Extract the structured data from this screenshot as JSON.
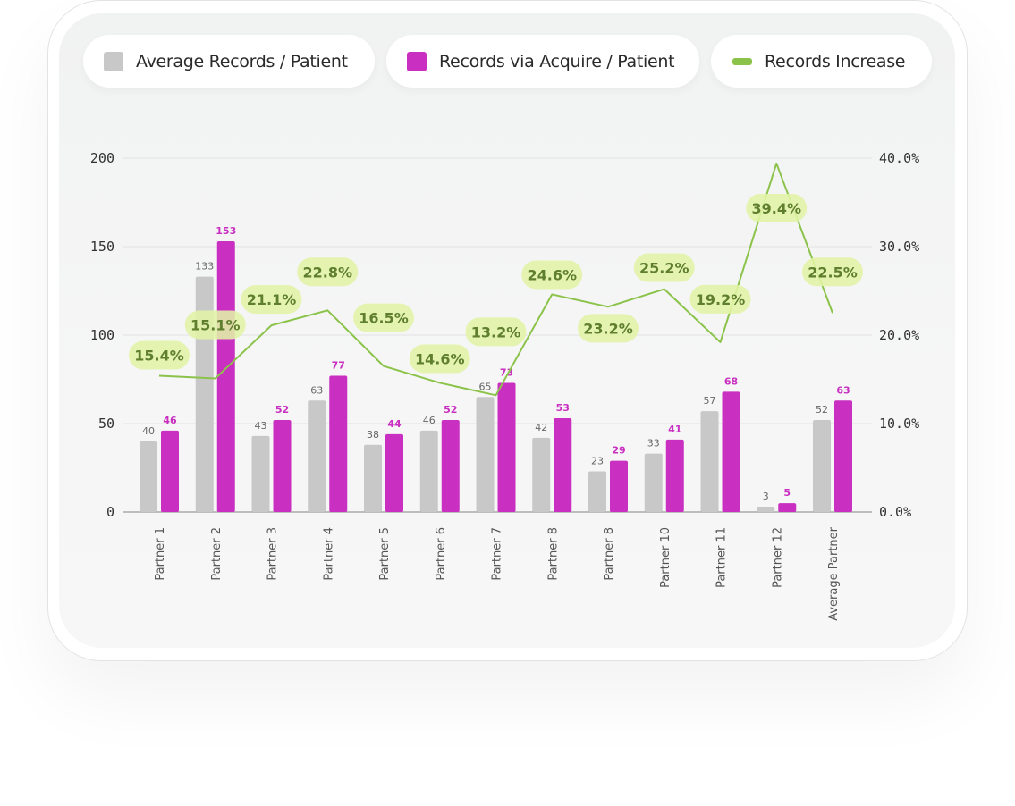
{
  "legend": [
    {
      "label": "Average Records / Patient",
      "color": "#c8c8c8"
    },
    {
      "label": "Records via Acquire / Patient",
      "color": "#c92fc0"
    },
    {
      "label": "Records Increase",
      "color": "#8bc34a"
    }
  ],
  "chart_data": {
    "type": "bar",
    "categories": [
      "Partner 1",
      "Partner 2",
      "Partner 3",
      "Partner 4",
      "Partner 5",
      "Partner 6",
      "Partner 7",
      "Partner 8",
      "Partner 8",
      "Partner 10",
      "Partner 11",
      "Partner 12",
      "Average Partner"
    ],
    "series": [
      {
        "name": "Average Records / Patient",
        "type": "bar",
        "axis": "left",
        "color": "#c8c8c8",
        "label_color": "#666666",
        "values": [
          40,
          133,
          43,
          63,
          38,
          46,
          65,
          42,
          23,
          33,
          57,
          3,
          52
        ]
      },
      {
        "name": "Records via Acquire / Patient",
        "type": "bar",
        "axis": "left",
        "color": "#c92fc0",
        "label_color": "#c92fc0",
        "values": [
          46,
          153,
          52,
          77,
          44,
          52,
          73,
          53,
          29,
          41,
          68,
          5,
          63
        ]
      },
      {
        "name": "Records Increase",
        "type": "line",
        "axis": "right",
        "color": "#8bc34a",
        "values": [
          15.4,
          15.1,
          21.1,
          22.8,
          16.5,
          14.6,
          13.2,
          24.6,
          23.2,
          25.2,
          19.2,
          39.4,
          22.5
        ],
        "labels": [
          "15.4%",
          "15.1%",
          "21.1%",
          "22.8%",
          "16.5%",
          "14.6%",
          "13.2%",
          "24.6%",
          "23.2%",
          "25.2%",
          "19.2%",
          "39.4%",
          "22.5%"
        ]
      }
    ],
    "y_left": {
      "range": [
        0,
        200
      ],
      "ticks": [
        "0",
        "50",
        "100",
        "150",
        "200"
      ]
    },
    "y_right": {
      "range": [
        0,
        40
      ],
      "ticks": [
        "0.0%",
        "10.0%",
        "20.0%",
        "30.0%",
        "40.0%"
      ]
    },
    "grid": true,
    "legend_position": "top"
  }
}
